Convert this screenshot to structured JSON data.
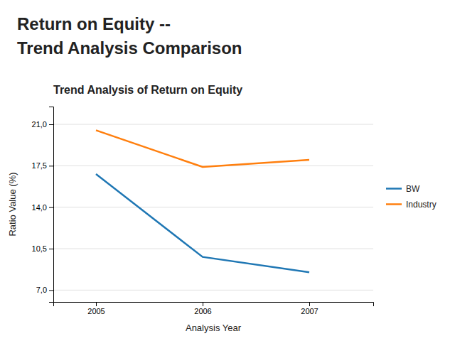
{
  "chart_data": {
    "type": "line",
    "annotations": [
      "Return on Equity --",
      "Trend Analysis Comparison"
    ],
    "title": "Trend Analysis of Return on Equity",
    "x_label": "Analysis Year",
    "y_label": "Ratio Value (%)",
    "x": [
      2005,
      2006,
      2007
    ],
    "series": [
      {
        "name": "BW",
        "values": [
          16.8,
          9.8,
          8.5
        ]
      },
      {
        "name": "Industry",
        "values": [
          20.5,
          17.4,
          18.0
        ]
      }
    ],
    "xlim": [
      2004.6,
      2007.6
    ],
    "xticks": [
      2005,
      2006,
      2007
    ],
    "ylim": [
      6.0,
      22.5
    ],
    "yticks": [
      {
        "value": 7.0,
        "label": "7,0"
      },
      {
        "value": 10.5,
        "label": "10,5"
      },
      {
        "value": 14.0,
        "label": "14,0"
      },
      {
        "value": 17.5,
        "label": "17,5"
      },
      {
        "value": 21.0,
        "label": "21,0"
      }
    ],
    "grid": true,
    "legend": "right"
  }
}
